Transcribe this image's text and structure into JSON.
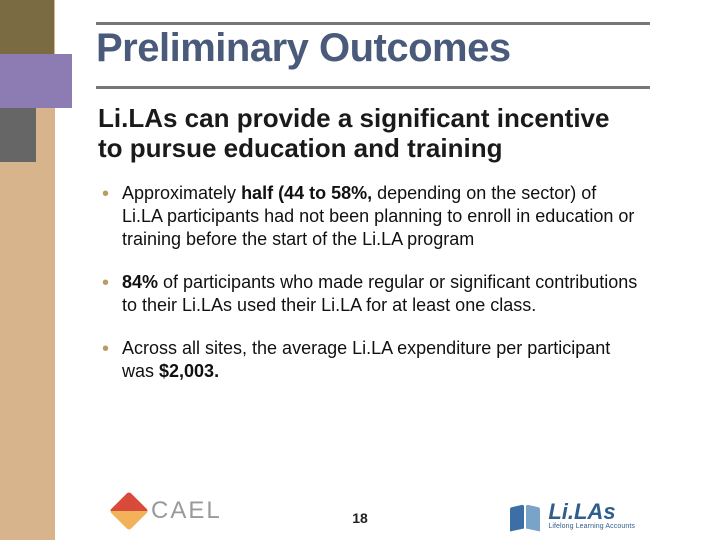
{
  "title": "Preliminary Outcomes",
  "subtitle": "Li.LAs can provide a significant incentive to pursue education and training",
  "bullets": {
    "b1_pre": "Approximately ",
    "b1_bold": "half (44 to 58%, ",
    "b1_post": "depending on the sector) of Li.LA participants had not been planning to enroll in education or training before the start of the Li.LA program",
    "b2_bold": "84% ",
    "b2_post": "of participants who made regular or significant contributions to their Li.LAs used their Li.LA for at least one class.",
    "b3_pre": "Across all sites, the average Li.LA expenditure per participant was ",
    "b3_bold": "$2,003.",
    "b3_post": ""
  },
  "page_number": "18",
  "logos": {
    "cael_text": "CAEL",
    "lilas_text": "Li.LAs",
    "lilas_sub": "Lifelong Learning Accounts"
  },
  "colors": {
    "olive": "#7a6b43",
    "purple": "#8d7bb3",
    "gray": "#666666",
    "tan": "#d8b48c",
    "title": "#4a5a7a",
    "bullet_marker": "#b99b63"
  }
}
